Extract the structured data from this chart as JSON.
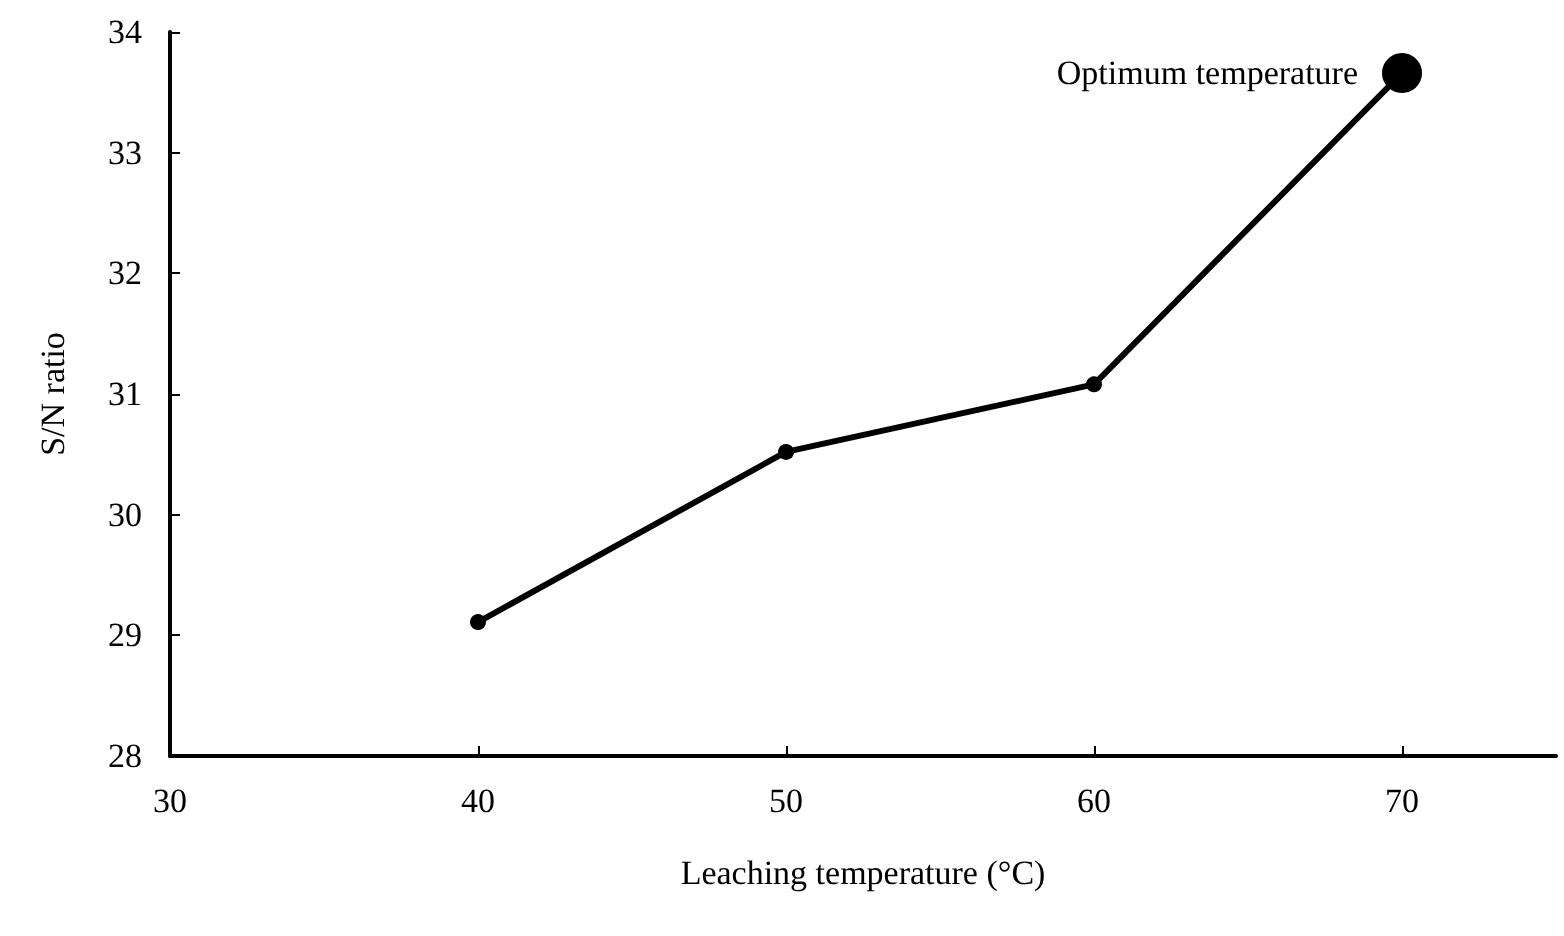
{
  "chart_data": {
    "type": "line",
    "xlabel": "Leaching temperature (°C)",
    "ylabel": "S/N ratio",
    "x": [
      40,
      50,
      60,
      70
    ],
    "series": [
      {
        "color": "#000000",
        "values": [
          29.11,
          30.52,
          31.08,
          33.66
        ]
      }
    ],
    "xlim": [
      30,
      75
    ],
    "xticks": [
      30,
      40,
      50,
      60,
      70
    ],
    "ylim": [
      28,
      34
    ],
    "yticks": [
      28,
      29,
      30,
      31,
      32,
      33,
      34
    ],
    "annotations": [
      {
        "text": "Optimum temperature",
        "x": 70,
        "y": 33.66
      }
    ],
    "marker": "circle",
    "line_style": "solid",
    "grid": false
  }
}
